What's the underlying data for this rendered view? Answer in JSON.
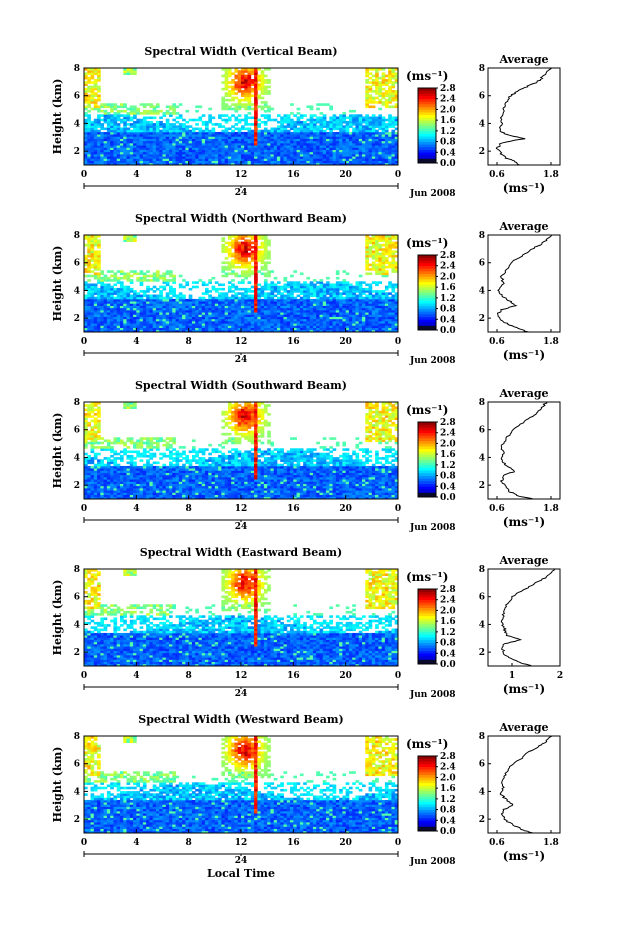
{
  "chart_data": [
    {
      "type": "heatmap",
      "title": "Spectral Width (Vertical Beam)",
      "ylabel": "Height (km)",
      "xlabel": "",
      "xlim": [
        0,
        24
      ],
      "ylim": [
        1,
        8
      ],
      "x_ticks": [
        "0",
        "4",
        "8",
        "12",
        "16",
        "20",
        "0"
      ],
      "y_ticks": [
        "2",
        "4",
        "6",
        "8"
      ],
      "day_label": "24",
      "date_label": "Jun 2008",
      "colorbar": {
        "unit": "(ms⁻¹)",
        "labels": [
          "2.8",
          "2.4",
          "2.0",
          "1.6",
          "1.2",
          "0.8",
          "0.4",
          "0.0"
        ],
        "range": [
          0,
          2.8
        ]
      },
      "profile": {
        "title": "Average",
        "xlabel": "(ms⁻¹)",
        "x_ticks": [
          "0.6",
          "1.8"
        ],
        "xlim": [
          0.4,
          2.0
        ],
        "y_ticks": [
          "2",
          "4",
          "6",
          "8"
        ],
        "points": [
          [
            1.8,
            8.0
          ],
          [
            1.7,
            7.7
          ],
          [
            1.6,
            7.3
          ],
          [
            1.5,
            7.0
          ],
          [
            1.3,
            6.7
          ],
          [
            1.1,
            6.4
          ],
          [
            0.9,
            6.0
          ],
          [
            0.8,
            5.5
          ],
          [
            0.75,
            5.0
          ],
          [
            0.7,
            4.5
          ],
          [
            0.72,
            4.0
          ],
          [
            0.66,
            3.5
          ],
          [
            0.8,
            3.2
          ],
          [
            1.2,
            2.9
          ],
          [
            0.7,
            2.6
          ],
          [
            0.6,
            2.2
          ],
          [
            0.7,
            1.8
          ],
          [
            0.8,
            1.5
          ],
          [
            1.0,
            1.3
          ],
          [
            1.1,
            1.0
          ]
        ]
      }
    },
    {
      "type": "heatmap",
      "title": "Spectral Width (Northward Beam)",
      "ylabel": "Height (km)",
      "xlabel": "",
      "xlim": [
        0,
        24
      ],
      "ylim": [
        1,
        8
      ],
      "x_ticks": [
        "0",
        "4",
        "8",
        "12",
        "16",
        "20",
        "0"
      ],
      "y_ticks": [
        "2",
        "4",
        "6",
        "8"
      ],
      "day_label": "24",
      "date_label": "Jun 2008",
      "colorbar": {
        "unit": "(ms⁻¹)",
        "labels": [
          "2.8",
          "2.4",
          "2.0",
          "1.6",
          "1.2",
          "0.8",
          "0.4",
          "0.0"
        ],
        "range": [
          0,
          2.8
        ]
      },
      "profile": {
        "title": "Average",
        "xlabel": "(ms⁻¹)",
        "x_ticks": [
          "0.6",
          "1.8"
        ],
        "xlim": [
          0.4,
          2.0
        ],
        "y_ticks": [
          "2",
          "4",
          "6",
          "8"
        ],
        "points": [
          [
            1.8,
            8.0
          ],
          [
            1.7,
            7.6
          ],
          [
            1.5,
            7.2
          ],
          [
            1.3,
            6.8
          ],
          [
            1.1,
            6.4
          ],
          [
            0.9,
            6.0
          ],
          [
            0.8,
            5.5
          ],
          [
            0.7,
            5.0
          ],
          [
            0.75,
            4.5
          ],
          [
            0.65,
            4.0
          ],
          [
            0.7,
            3.6
          ],
          [
            0.9,
            3.2
          ],
          [
            1.0,
            2.9
          ],
          [
            0.7,
            2.6
          ],
          [
            0.6,
            2.2
          ],
          [
            0.7,
            1.8
          ],
          [
            0.9,
            1.5
          ],
          [
            1.1,
            1.2
          ],
          [
            1.3,
            1.0
          ]
        ]
      }
    },
    {
      "type": "heatmap",
      "title": "Spectral Width (Southward Beam)",
      "ylabel": "Height (km)",
      "xlabel": "",
      "xlim": [
        0,
        24
      ],
      "ylim": [
        1,
        8
      ],
      "x_ticks": [
        "0",
        "4",
        "8",
        "12",
        "16",
        "20",
        "0"
      ],
      "y_ticks": [
        "2",
        "4",
        "6",
        "8"
      ],
      "day_label": "24",
      "date_label": "Jun 2008",
      "colorbar": {
        "unit": "(ms⁻¹)",
        "labels": [
          "2.8",
          "2.4",
          "2.0",
          "1.6",
          "1.2",
          "0.8",
          "0.4",
          "0.0"
        ],
        "range": [
          0,
          2.8
        ]
      },
      "profile": {
        "title": "Average",
        "xlabel": "(ms⁻¹)",
        "x_ticks": [
          "0.6",
          "1.8"
        ],
        "xlim": [
          0.4,
          2.0
        ],
        "y_ticks": [
          "2",
          "4",
          "6",
          "8"
        ],
        "points": [
          [
            1.7,
            8.0
          ],
          [
            1.6,
            7.6
          ],
          [
            1.5,
            7.2
          ],
          [
            1.3,
            6.8
          ],
          [
            1.1,
            6.3
          ],
          [
            0.9,
            5.8
          ],
          [
            0.8,
            5.3
          ],
          [
            0.7,
            4.8
          ],
          [
            0.75,
            4.3
          ],
          [
            0.7,
            3.8
          ],
          [
            0.8,
            3.4
          ],
          [
            1.0,
            3.0
          ],
          [
            0.75,
            2.7
          ],
          [
            0.7,
            2.3
          ],
          [
            0.8,
            1.9
          ],
          [
            0.9,
            1.5
          ],
          [
            1.1,
            1.2
          ],
          [
            1.4,
            1.0
          ]
        ]
      }
    },
    {
      "type": "heatmap",
      "title": "Spectral Width (Eastward Beam)",
      "ylabel": "Height (km)",
      "xlabel": "",
      "xlim": [
        0,
        24
      ],
      "ylim": [
        1,
        8
      ],
      "x_ticks": [
        "0",
        "4",
        "8",
        "12",
        "16",
        "20",
        "0"
      ],
      "y_ticks": [
        "2",
        "4",
        "6",
        "8"
      ],
      "day_label": "24",
      "date_label": "Jun 2008",
      "colorbar": {
        "unit": "(ms⁻¹)",
        "labels": [
          "2.8",
          "2.4",
          "2.0",
          "1.6",
          "1.2",
          "0.8",
          "0.4",
          "0.0"
        ],
        "range": [
          0,
          2.8
        ]
      },
      "profile": {
        "title": "Average",
        "xlabel": "(ms⁻¹)",
        "x_ticks": [
          "1",
          "2"
        ],
        "xlim": [
          0.5,
          2.0
        ],
        "y_ticks": [
          "2",
          "4",
          "6",
          "8"
        ],
        "points": [
          [
            1.9,
            8.0
          ],
          [
            1.8,
            7.6
          ],
          [
            1.6,
            7.2
          ],
          [
            1.4,
            6.8
          ],
          [
            1.2,
            6.4
          ],
          [
            1.0,
            6.0
          ],
          [
            0.9,
            5.5
          ],
          [
            0.85,
            5.0
          ],
          [
            0.8,
            4.5
          ],
          [
            0.8,
            4.0
          ],
          [
            0.85,
            3.6
          ],
          [
            0.9,
            3.2
          ],
          [
            1.2,
            2.9
          ],
          [
            0.85,
            2.6
          ],
          [
            0.8,
            2.2
          ],
          [
            0.85,
            1.8
          ],
          [
            1.0,
            1.5
          ],
          [
            1.2,
            1.2
          ],
          [
            1.4,
            1.0
          ]
        ]
      }
    },
    {
      "type": "heatmap",
      "title": "Spectral Width (Westward Beam)",
      "ylabel": "Height (km)",
      "xlabel": "Local Time",
      "xlim": [
        0,
        24
      ],
      "ylim": [
        1,
        8
      ],
      "x_ticks": [
        "0",
        "4",
        "8",
        "12",
        "16",
        "20",
        "0"
      ],
      "y_ticks": [
        "2",
        "4",
        "6",
        "8"
      ],
      "day_label": "24",
      "date_label": "Jun 2008",
      "colorbar": {
        "unit": "(ms⁻¹)",
        "labels": [
          "2.8",
          "2.4",
          "2.0",
          "1.6",
          "1.2",
          "0.8",
          "0.4",
          "0.0"
        ],
        "range": [
          0,
          2.8
        ]
      },
      "profile": {
        "title": "Average",
        "xlabel": "(ms⁻¹)",
        "x_ticks": [
          "0.6",
          "1.8"
        ],
        "xlim": [
          0.4,
          2.0
        ],
        "y_ticks": [
          "2",
          "4",
          "6",
          "8"
        ],
        "points": [
          [
            1.8,
            8.0
          ],
          [
            1.7,
            7.6
          ],
          [
            1.5,
            7.2
          ],
          [
            1.3,
            6.8
          ],
          [
            1.1,
            6.3
          ],
          [
            0.9,
            5.8
          ],
          [
            0.8,
            5.3
          ],
          [
            0.7,
            4.8
          ],
          [
            0.75,
            4.3
          ],
          [
            0.7,
            3.8
          ],
          [
            0.8,
            3.4
          ],
          [
            0.95,
            3.0
          ],
          [
            0.75,
            2.7
          ],
          [
            0.7,
            2.3
          ],
          [
            0.8,
            1.9
          ],
          [
            1.0,
            1.5
          ],
          [
            1.2,
            1.2
          ],
          [
            1.4,
            1.0
          ]
        ]
      }
    }
  ]
}
